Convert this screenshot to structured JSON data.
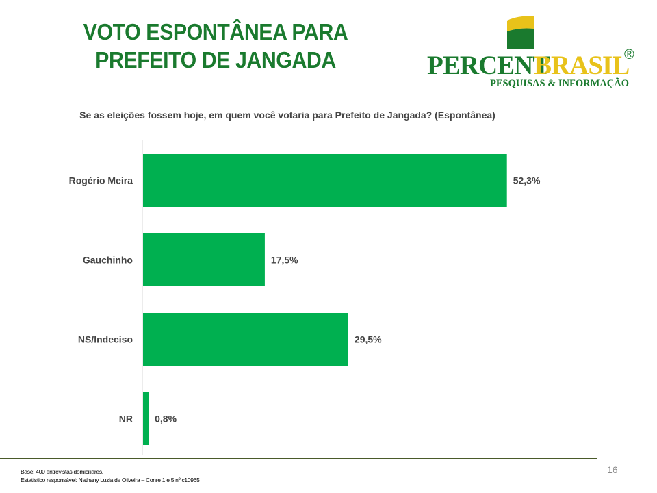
{
  "title": {
    "line1": "VOTO ESPONTÂNEA PARA",
    "line2": "PREFEITO DE JANGADA"
  },
  "logo": {
    "word1": "PERCENT",
    "word2": "BRASIL",
    "registered": "®",
    "tagline": "PESQUISAS & INFORMAÇÃO"
  },
  "colors": {
    "title": "#1a7a2e",
    "bar": "#00b050",
    "logo_green": "#1a7a2e",
    "logo_yellow": "#e8c21a"
  },
  "chart_data": {
    "type": "bar",
    "orientation": "horizontal",
    "title": "Se as eleições fossem hoje, em quem você votaria para Prefeito de Jangada? (Espontânea)",
    "categories": [
      "Rogério Meira",
      "Gauchinho",
      "NS/Indeciso",
      "NR"
    ],
    "values": [
      52.3,
      17.5,
      29.5,
      0.8
    ],
    "data_labels": [
      "52,3%",
      "17,5%",
      "29,5%",
      "0,8%"
    ],
    "xlim": [
      0,
      60
    ],
    "grid": false,
    "legend": "none"
  },
  "footer": {
    "base": "Base: 400 entrevistas domiciliares.",
    "statistician": "Estatístico responsável: Nathany Luzia de Oliveira – Conre 1 e 5 nº c10965",
    "page_number": "16"
  }
}
